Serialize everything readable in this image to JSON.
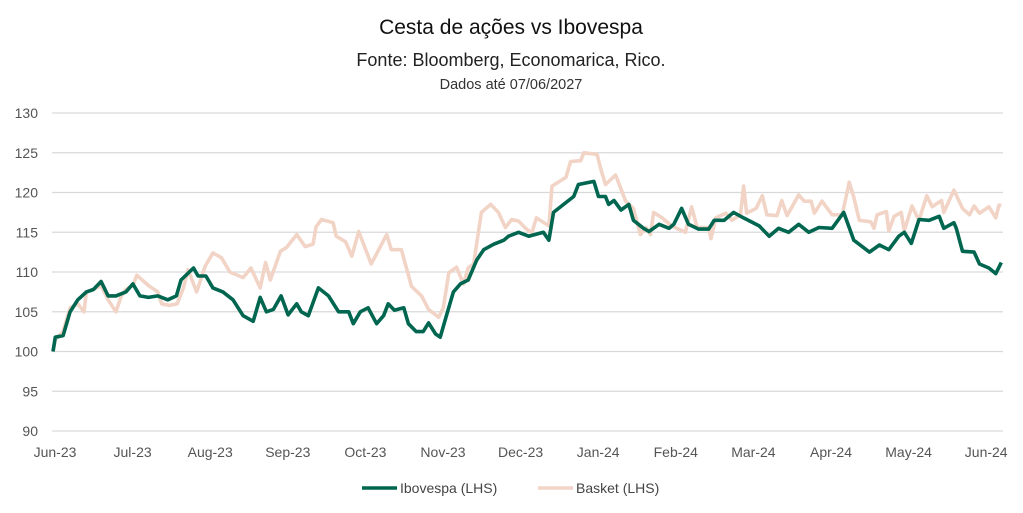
{
  "chart_data": {
    "type": "line",
    "title": "Cesta de ações vs Ibovespa",
    "subtitle": "Fonte: Bloomberg, Economarica, Rico.",
    "note": "Dados até 07/06/2027",
    "xlabel": "",
    "ylabel": "",
    "ylim": [
      90,
      130
    ],
    "yticks": [
      "90",
      "95",
      "100",
      "105",
      "110",
      "115",
      "120",
      "125",
      "130"
    ],
    "x_unit": "months since Jun-23",
    "xlim": [
      0,
      12.22
    ],
    "xticks": [
      "Jun-23",
      "Jul-23",
      "Aug-23",
      "Sep-23",
      "Oct-23",
      "Nov-23",
      "Dec-23",
      "Jan-24",
      "Feb-24",
      "Mar-24",
      "Apr-24",
      "May-24",
      "Jun-24"
    ],
    "grid": true,
    "legend_position": "bottom",
    "series": [
      {
        "name": "Ibovespa (LHS)",
        "color": "#00664f",
        "points": [
          [
            0,
            100
          ],
          [
            0.03,
            101.8
          ],
          [
            0.13,
            102
          ],
          [
            0.22,
            105
          ],
          [
            0.32,
            106.5
          ],
          [
            0.43,
            107.5
          ],
          [
            0.52,
            107.8
          ],
          [
            0.62,
            108.8
          ],
          [
            0.71,
            107
          ],
          [
            0.81,
            107
          ],
          [
            0.94,
            107.5
          ],
          [
            1.03,
            108.5
          ],
          [
            1.12,
            107
          ],
          [
            1.23,
            106.8
          ],
          [
            1.35,
            107
          ],
          [
            1.48,
            106.5
          ],
          [
            1.59,
            107
          ],
          [
            1.65,
            109
          ],
          [
            1.81,
            110.5
          ],
          [
            1.87,
            109.5
          ],
          [
            1.97,
            109.5
          ],
          [
            2.06,
            108
          ],
          [
            2.19,
            107.5
          ],
          [
            2.32,
            106.5
          ],
          [
            2.45,
            104.5
          ],
          [
            2.58,
            103.8
          ],
          [
            2.67,
            106.8
          ],
          [
            2.75,
            105
          ],
          [
            2.84,
            105.3
          ],
          [
            2.94,
            107
          ],
          [
            3.03,
            104.6
          ],
          [
            3.14,
            106
          ],
          [
            3.2,
            105
          ],
          [
            3.29,
            104.5
          ],
          [
            3.42,
            108
          ],
          [
            3.55,
            107
          ],
          [
            3.68,
            105
          ],
          [
            3.81,
            105
          ],
          [
            3.87,
            103.5
          ],
          [
            3.96,
            105
          ],
          [
            4.06,
            105.5
          ],
          [
            4.17,
            103.5
          ],
          [
            4.26,
            104.5
          ],
          [
            4.32,
            106
          ],
          [
            4.4,
            105.2
          ],
          [
            4.52,
            105.5
          ],
          [
            4.58,
            103.5
          ],
          [
            4.68,
            102.5
          ],
          [
            4.77,
            102.5
          ],
          [
            4.84,
            103.6
          ],
          [
            4.93,
            102.2
          ],
          [
            4.99,
            101.8
          ],
          [
            5.07,
            104.5
          ],
          [
            5.16,
            107.5
          ],
          [
            5.25,
            108.5
          ],
          [
            5.35,
            109
          ],
          [
            5.46,
            111.5
          ],
          [
            5.55,
            112.8
          ],
          [
            5.68,
            113.5
          ],
          [
            5.81,
            114
          ],
          [
            5.87,
            114.5
          ],
          [
            6.0,
            115
          ],
          [
            6.13,
            114.5
          ],
          [
            6.32,
            115
          ],
          [
            6.39,
            114
          ],
          [
            6.45,
            117.5
          ],
          [
            6.58,
            118.5
          ],
          [
            6.71,
            119.5
          ],
          [
            6.77,
            121
          ],
          [
            6.97,
            121.4
          ],
          [
            7.03,
            119.5
          ],
          [
            7.12,
            119.5
          ],
          [
            7.16,
            118.5
          ],
          [
            7.23,
            119
          ],
          [
            7.32,
            117.8
          ],
          [
            7.42,
            118.5
          ],
          [
            7.48,
            116.5
          ],
          [
            7.61,
            115.5
          ],
          [
            7.68,
            115.1
          ],
          [
            7.81,
            116
          ],
          [
            7.94,
            115.5
          ],
          [
            8.0,
            116
          ],
          [
            8.1,
            118
          ],
          [
            8.19,
            116
          ],
          [
            8.32,
            115.4
          ],
          [
            8.45,
            115.4
          ],
          [
            8.52,
            116.5
          ],
          [
            8.65,
            116.5
          ],
          [
            8.77,
            117.5
          ],
          [
            8.9,
            116.8
          ],
          [
            9.1,
            115.8
          ],
          [
            9.23,
            114.5
          ],
          [
            9.35,
            115.5
          ],
          [
            9.48,
            115
          ],
          [
            9.61,
            116
          ],
          [
            9.74,
            115
          ],
          [
            9.87,
            115.6
          ],
          [
            10.04,
            115.5
          ],
          [
            10.19,
            117.5
          ],
          [
            10.32,
            114
          ],
          [
            10.52,
            112.5
          ],
          [
            10.65,
            113.4
          ],
          [
            10.77,
            112.8
          ],
          [
            10.9,
            114.5
          ],
          [
            10.97,
            115
          ],
          [
            11.06,
            113.6
          ],
          [
            11.16,
            116.6
          ],
          [
            11.29,
            116.5
          ],
          [
            11.42,
            117
          ],
          [
            11.48,
            115.5
          ],
          [
            11.61,
            116.2
          ],
          [
            11.64,
            115.5
          ],
          [
            11.72,
            112.6
          ],
          [
            11.87,
            112.5
          ],
          [
            11.94,
            111
          ],
          [
            12.06,
            110.5
          ],
          [
            12.15,
            109.8
          ],
          [
            12.22,
            111.2
          ]
        ]
      },
      {
        "name": "Basket (LHS)",
        "color": "#f2d4c6",
        "points": [
          [
            0,
            100
          ],
          [
            0.03,
            101.5
          ],
          [
            0.13,
            102.5
          ],
          [
            0.22,
            105.5
          ],
          [
            0.32,
            106
          ],
          [
            0.4,
            105
          ],
          [
            0.43,
            107.5
          ],
          [
            0.52,
            107.8
          ],
          [
            0.62,
            108.3
          ],
          [
            0.71,
            106.5
          ],
          [
            0.81,
            105
          ],
          [
            0.88,
            107
          ],
          [
            0.94,
            107.8
          ],
          [
            1.03,
            108.3
          ],
          [
            1.08,
            109.6
          ],
          [
            1.15,
            109
          ],
          [
            1.23,
            108.3
          ],
          [
            1.35,
            107.5
          ],
          [
            1.4,
            106
          ],
          [
            1.5,
            105.8
          ],
          [
            1.6,
            106
          ],
          [
            1.68,
            108
          ],
          [
            1.74,
            110.3
          ],
          [
            1.85,
            107.5
          ],
          [
            1.96,
            110.7
          ],
          [
            2.06,
            112.4
          ],
          [
            2.17,
            111.8
          ],
          [
            2.28,
            110
          ],
          [
            2.45,
            109.3
          ],
          [
            2.55,
            110.5
          ],
          [
            2.67,
            108
          ],
          [
            2.74,
            111.2
          ],
          [
            2.8,
            109
          ],
          [
            2.93,
            112.6
          ],
          [
            3.01,
            113.1
          ],
          [
            3.14,
            114.7
          ],
          [
            3.25,
            113.2
          ],
          [
            3.35,
            113.5
          ],
          [
            3.39,
            115.7
          ],
          [
            3.46,
            116.6
          ],
          [
            3.61,
            116.2
          ],
          [
            3.65,
            114.5
          ],
          [
            3.77,
            113.8
          ],
          [
            3.85,
            112
          ],
          [
            3.94,
            115.1
          ],
          [
            4.1,
            111
          ],
          [
            4.3,
            114.7
          ],
          [
            4.36,
            112.8
          ],
          [
            4.49,
            112.8
          ],
          [
            4.62,
            108.2
          ],
          [
            4.75,
            107
          ],
          [
            4.84,
            105.3
          ],
          [
            4.97,
            104.3
          ],
          [
            5.03,
            105.5
          ],
          [
            5.1,
            109.9
          ],
          [
            5.2,
            110.6
          ],
          [
            5.29,
            108.5
          ],
          [
            5.35,
            110.5
          ],
          [
            5.42,
            111
          ],
          [
            5.52,
            117.5
          ],
          [
            5.64,
            118.5
          ],
          [
            5.74,
            117.5
          ],
          [
            5.83,
            115.6
          ],
          [
            5.91,
            116.6
          ],
          [
            6.0,
            116.4
          ],
          [
            6.09,
            115.5
          ],
          [
            6.17,
            114.9
          ],
          [
            6.23,
            116.8
          ],
          [
            6.39,
            115.8
          ],
          [
            6.43,
            120.8
          ],
          [
            6.61,
            121.9
          ],
          [
            6.67,
            123.9
          ],
          [
            6.8,
            124
          ],
          [
            6.84,
            125
          ],
          [
            7.01,
            124.8
          ],
          [
            7.07,
            122.6
          ],
          [
            7.12,
            121
          ],
          [
            7.25,
            122.2
          ],
          [
            7.38,
            118.9
          ],
          [
            7.48,
            118
          ],
          [
            7.57,
            114.7
          ],
          [
            7.64,
            115.6
          ],
          [
            7.7,
            114.7
          ],
          [
            7.74,
            117.5
          ],
          [
            7.85,
            116.8
          ],
          [
            7.97,
            115.8
          ],
          [
            8.06,
            115.4
          ],
          [
            8.15,
            115
          ],
          [
            8.23,
            118.2
          ],
          [
            8.3,
            115.6
          ],
          [
            8.45,
            115.6
          ],
          [
            8.48,
            114.2
          ],
          [
            8.54,
            116.8
          ],
          [
            8.67,
            117.4
          ],
          [
            8.75,
            116.5
          ],
          [
            8.86,
            117.2
          ],
          [
            8.9,
            120.8
          ],
          [
            8.94,
            117.4
          ],
          [
            9.06,
            118
          ],
          [
            9.14,
            119.6
          ],
          [
            9.2,
            117.2
          ],
          [
            9.33,
            117.1
          ],
          [
            9.39,
            119
          ],
          [
            9.46,
            117.1
          ],
          [
            9.61,
            119.7
          ],
          [
            9.68,
            118.9
          ],
          [
            9.77,
            118.9
          ],
          [
            9.81,
            117.4
          ],
          [
            9.91,
            118.9
          ],
          [
            10.04,
            117.2
          ],
          [
            10.17,
            117.2
          ],
          [
            10.26,
            121.3
          ],
          [
            10.32,
            119.4
          ],
          [
            10.39,
            116.5
          ],
          [
            10.54,
            116.3
          ],
          [
            10.58,
            115.5
          ],
          [
            10.62,
            117.2
          ],
          [
            10.74,
            117.6
          ],
          [
            10.77,
            115.2
          ],
          [
            10.84,
            117
          ],
          [
            10.93,
            117.5
          ],
          [
            10.97,
            115.2
          ],
          [
            11.07,
            118.3
          ],
          [
            11.16,
            116.5
          ],
          [
            11.26,
            119.6
          ],
          [
            11.33,
            118.2
          ],
          [
            11.45,
            119
          ],
          [
            11.48,
            117.5
          ],
          [
            11.61,
            120.3
          ],
          [
            11.72,
            118
          ],
          [
            11.81,
            117.2
          ],
          [
            11.87,
            118.3
          ],
          [
            11.94,
            117.4
          ],
          [
            12.06,
            118.2
          ],
          [
            12.15,
            116.8
          ],
          [
            12.19,
            118.4
          ],
          [
            12.22,
            118.4
          ]
        ]
      }
    ]
  }
}
